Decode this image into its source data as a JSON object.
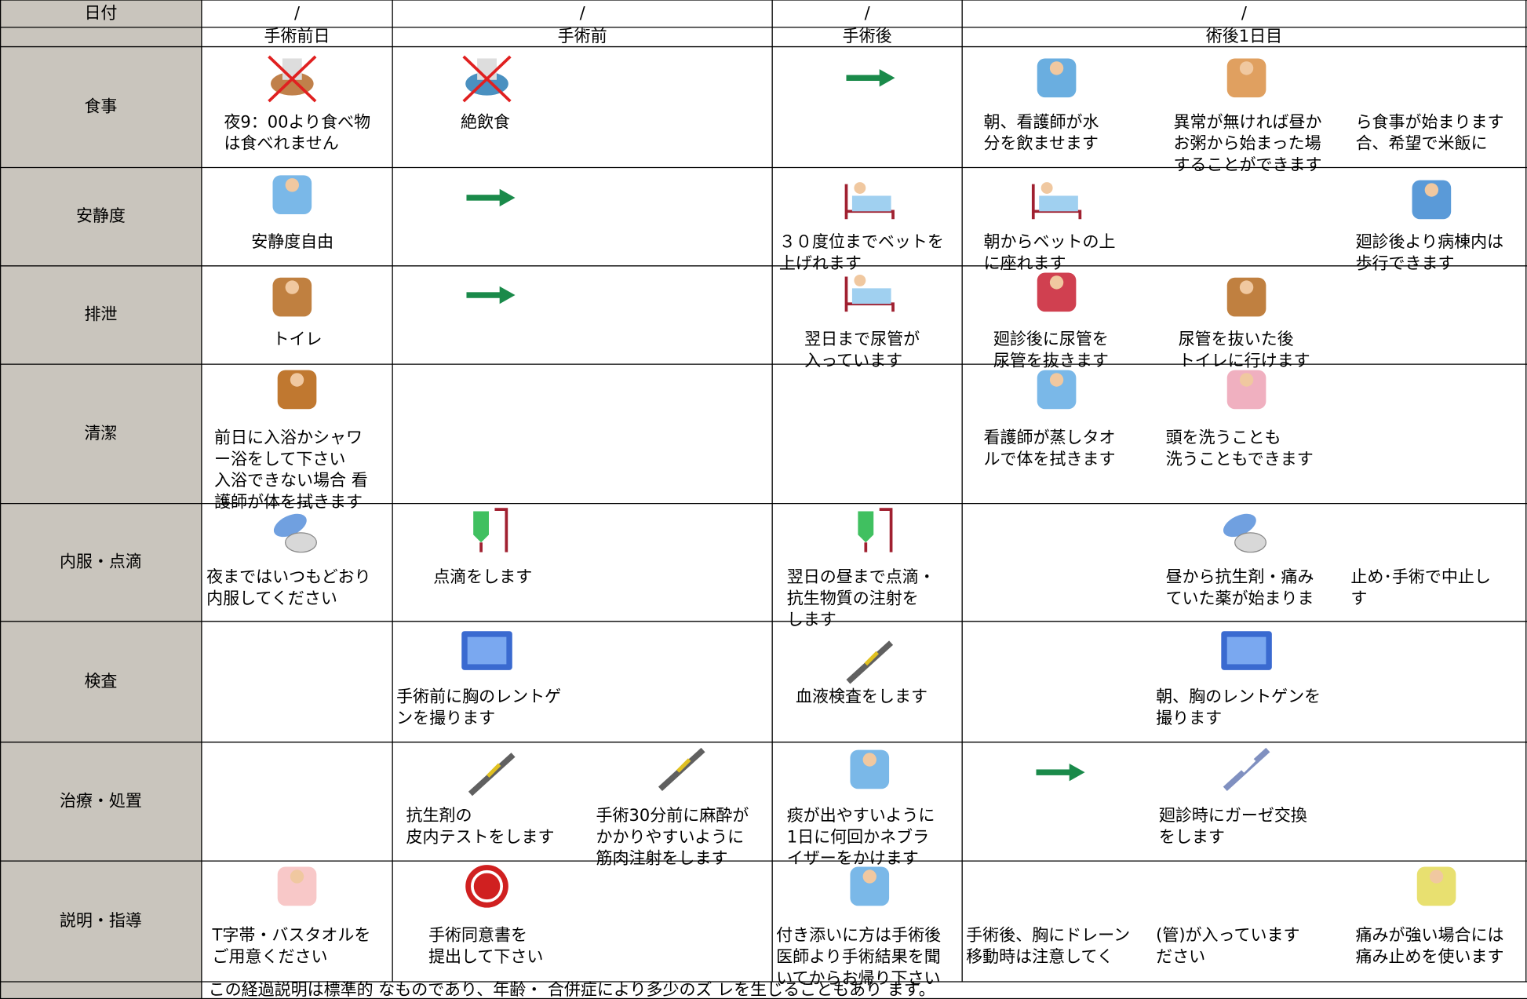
{
  "header": {
    "date_label": "日付",
    "dates": [
      "/",
      "/",
      "/",
      "/"
    ],
    "phases": [
      "手術前日",
      "手術前",
      "手術後",
      "術後1日目"
    ]
  },
  "rows": [
    {
      "label": "食事",
      "items": [
        {
          "lines": [
            "夜9：00より食べ物",
            "は食べれません"
          ]
        },
        {
          "lines": [
            "絶飲食"
          ]
        },
        {
          "lines": [
            "朝、看護師が水",
            "分を飲ませます"
          ]
        },
        {
          "lines": [
            "異常が無ければ昼か",
            "お粥から始まった場",
            "することができます"
          ]
        },
        {
          "lines": [
            "ら食事が始まります",
            "合、希望で米飯に"
          ]
        }
      ]
    },
    {
      "label": "安静度",
      "items": [
        {
          "lines": [
            "安静度自由"
          ]
        },
        {
          "lines": [
            "３０度位までベットを",
            "上げれます"
          ]
        },
        {
          "lines": [
            "朝からベットの上",
            "に座れます"
          ]
        },
        {
          "lines": [
            "廻診後より病棟内は",
            "歩行できます"
          ]
        }
      ]
    },
    {
      "label": "排泄",
      "items": [
        {
          "lines": [
            "トイレ"
          ]
        },
        {
          "lines": [
            "翌日まで尿管が",
            "入っています"
          ]
        },
        {
          "lines": [
            "廻診後に尿管を",
            "尿管を抜きます"
          ]
        },
        {
          "lines": [
            "尿管を抜いた後",
            "トイレに行けます"
          ]
        }
      ]
    },
    {
      "label": "清潔",
      "items": [
        {
          "lines": [
            "前日に入浴かシャワ",
            "ー浴をして下さい",
            "入浴できない場合 看",
            "護師が体を拭きます"
          ]
        },
        {
          "lines": [
            "看護師が蒸しタオ",
            "ルで体を拭きます"
          ]
        },
        {
          "lines": [
            "頭を洗うことも",
            "洗うこともできます"
          ]
        }
      ]
    },
    {
      "label": "内服・点滴",
      "items": [
        {
          "lines": [
            "夜まではいつもどおり",
            "内服してください"
          ]
        },
        {
          "lines": [
            "点滴をします"
          ]
        },
        {
          "lines": [
            "翌日の昼まで点滴・",
            "抗生物質の注射を",
            "します"
          ]
        },
        {
          "lines": [
            "昼から抗生剤・痛み",
            "ていた薬が始まりま"
          ]
        },
        {
          "lines": [
            "止め･手術で中止し",
            "す"
          ]
        }
      ]
    },
    {
      "label": "検査",
      "items": [
        {
          "lines": [
            "手術前に胸のレントゲ",
            "ンを撮ります"
          ]
        },
        {
          "lines": [
            "血液検査をします"
          ]
        },
        {
          "lines": [
            "朝、胸のレントゲンを",
            "撮ります"
          ]
        }
      ]
    },
    {
      "label": "治療・処置",
      "items": [
        {
          "lines": [
            "抗生剤の",
            "皮内テストをします"
          ]
        },
        {
          "lines": [
            "手術30分前に麻酔が",
            "かかりやすいように",
            "筋肉注射をします"
          ]
        },
        {
          "lines": [
            "痰が出やすいように",
            "1日に何回かネブラ",
            "イザーをかけます"
          ]
        },
        {
          "lines": [
            "廻診時にガーゼ交換",
            "をします"
          ]
        }
      ]
    },
    {
      "label": "説明・指導",
      "items": [
        {
          "lines": [
            "T字帯・バスタオルを",
            "ご用意ください"
          ]
        },
        {
          "lines": [
            "手術同意書を",
            "提出して下さい"
          ]
        },
        {
          "lines": [
            "付き添いに方は手術後",
            "医師より手術結果を聞",
            "いてからお帰り下さい"
          ]
        },
        {
          "lines": [
            "手術後、胸にドレーン",
            "移動時は注意してく"
          ]
        },
        {
          "lines": [
            "(管)が入っています",
            "ださい"
          ]
        },
        {
          "lines": [
            "痛みが強い場合には",
            "痛み止めを使います"
          ]
        }
      ]
    }
  ],
  "footer": "この経過説明は標準的 なものであり、年齢・ 合併症により多少のズ レを生じることもあり ます。"
}
